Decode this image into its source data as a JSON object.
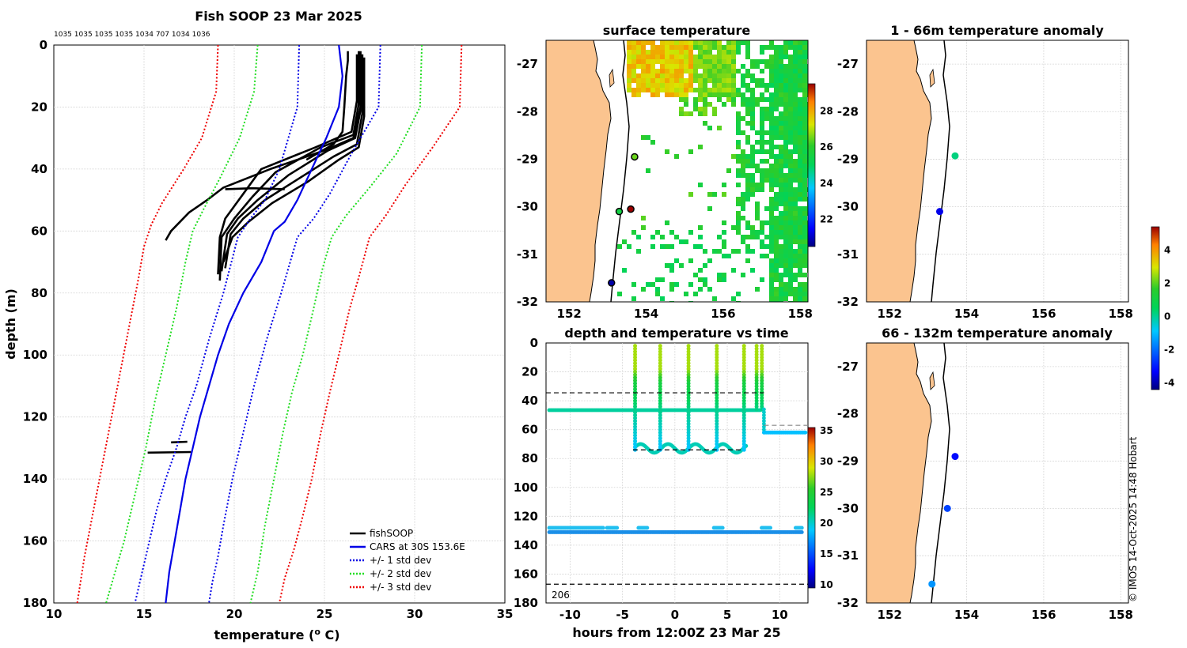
{
  "chart_data": [
    {
      "type": "line",
      "title": "Fish SOOP 23 Mar 2025",
      "subtitle": "1035 1035 1035 1035 1034 707 1034 1036",
      "xlabel": "temperature (",
      "xlabel_sup": "o",
      "xlabel_end": " C)",
      "ylabel": "depth (m)",
      "xlim": [
        10,
        35
      ],
      "ylim": [
        0,
        180
      ],
      "y_reversed": true,
      "xticks": [
        10,
        15,
        20,
        25,
        30,
        35
      ],
      "yticks": [
        0,
        20,
        40,
        60,
        80,
        100,
        120,
        140,
        160,
        180
      ],
      "grid": true,
      "legend_position": "bottom-right",
      "series": [
        {
          "name": "fishSOOP",
          "color": "#000000",
          "style": "solid",
          "profiles": [
            [
              [
                27,
                3
              ],
              [
                27,
                20
              ],
              [
                26.6,
                30
              ],
              [
                25,
                34
              ],
              [
                22,
                40
              ],
              [
                19.4,
                46
              ],
              [
                18.5,
                50
              ],
              [
                17.5,
                54
              ],
              [
                16.5,
                60
              ],
              [
                16.2,
                63
              ]
            ],
            [
              [
                26.8,
                3
              ],
              [
                26.8,
                18
              ],
              [
                26.5,
                28
              ],
              [
                24.5,
                33
              ],
              [
                21.5,
                40
              ],
              [
                20.5,
                48
              ],
              [
                19.5,
                56
              ],
              [
                19.2,
                62
              ],
              [
                19.1,
                74
              ]
            ],
            [
              [
                26.9,
                2
              ],
              [
                26.9,
                19
              ],
              [
                26.6,
                29
              ],
              [
                24.8,
                33
              ],
              [
                22.3,
                41
              ],
              [
                21,
                49
              ],
              [
                20,
                56
              ],
              [
                19.3,
                62
              ],
              [
                19.2,
                76
              ]
            ],
            [
              [
                27,
                2
              ],
              [
                27,
                21
              ],
              [
                26.7,
                30
              ],
              [
                25.2,
                34
              ],
              [
                23,
                42
              ],
              [
                21.3,
                50
              ],
              [
                20.2,
                56
              ],
              [
                19.6,
                61
              ],
              [
                19.3,
                73
              ]
            ],
            [
              [
                27.1,
                3
              ],
              [
                27.1,
                22
              ],
              [
                26.8,
                32
              ],
              [
                25.5,
                36
              ],
              [
                23.6,
                43
              ],
              [
                21.7,
                50
              ],
              [
                20.5,
                56
              ],
              [
                19.8,
                61
              ],
              [
                19.5,
                72
              ]
            ],
            [
              [
                27.2,
                4
              ],
              [
                27.2,
                23
              ],
              [
                26.9,
                33
              ],
              [
                25.8,
                37
              ],
              [
                24.1,
                44
              ],
              [
                22.1,
                51
              ],
              [
                20.8,
                57
              ],
              [
                19.9,
                62
              ],
              [
                19.4,
                70
              ]
            ],
            [
              [
                26.3,
                2
              ],
              [
                26.3,
                5
              ],
              [
                26.2,
                10
              ],
              [
                26.1,
                20
              ],
              [
                26,
                28
              ],
              [
                25.5,
                32
              ],
              [
                24,
                37
              ]
            ],
            [
              [
                19.5,
                46.5
              ],
              [
                21,
                46.2
              ],
              [
                22.8,
                46.5
              ]
            ],
            [
              [
                15.2,
                131.5
              ],
              [
                17.6,
                131.3
              ]
            ],
            [
              [
                16.5,
                128.2
              ],
              [
                17.4,
                128
              ]
            ]
          ]
        },
        {
          "name": "CARS at 30S 153.6E",
          "color": "#0000e6",
          "style": "solid",
          "points": [
            [
              25.8,
              0
            ],
            [
              26,
              10
            ],
            [
              25.8,
              20
            ],
            [
              25.1,
              30
            ],
            [
              24.3,
              40
            ],
            [
              23.5,
              50
            ],
            [
              22.8,
              57
            ],
            [
              22.2,
              60
            ],
            [
              21.5,
              70
            ],
            [
              20.5,
              80
            ],
            [
              19.7,
              90
            ],
            [
              19.1,
              100
            ],
            [
              18.6,
              110
            ],
            [
              18.1,
              120
            ],
            [
              17.7,
              130
            ],
            [
              17.3,
              140
            ],
            [
              17,
              150
            ],
            [
              16.7,
              160
            ],
            [
              16.4,
              170
            ],
            [
              16.2,
              180
            ]
          ]
        },
        {
          "name": "+/- 1 std dev",
          "color": "#0000e6",
          "style": "dotted",
          "low": [
            [
              23.6,
              0
            ],
            [
              23.5,
              20
            ],
            [
              22.5,
              40
            ],
            [
              21.7,
              50
            ],
            [
              20.9,
              56
            ],
            [
              20.2,
              62
            ],
            [
              19.4,
              80
            ],
            [
              18.6,
              95
            ],
            [
              17.9,
              110
            ],
            [
              17.3,
              120
            ],
            [
              16.8,
              130
            ],
            [
              16.2,
              140
            ],
            [
              15.7,
              150
            ],
            [
              15.3,
              160
            ],
            [
              14.9,
              170
            ],
            [
              14.5,
              180
            ]
          ],
          "high": [
            [
              28.1,
              0
            ],
            [
              28,
              20
            ],
            [
              26.5,
              35
            ],
            [
              25.3,
              48
            ],
            [
              24.4,
              56
            ],
            [
              23.5,
              62
            ],
            [
              23.1,
              70
            ],
            [
              22.6,
              80
            ],
            [
              21.8,
              95
            ],
            [
              21.1,
              110
            ],
            [
              20.7,
              120
            ],
            [
              20.3,
              130
            ],
            [
              19.9,
              140
            ],
            [
              19.4,
              155
            ],
            [
              19.1,
              165
            ],
            [
              18.8,
              173
            ],
            [
              18.6,
              180
            ]
          ]
        },
        {
          "name": "+/- 2 std dev",
          "color": "#22dd22",
          "style": "dotted",
          "low": [
            [
              21.3,
              0
            ],
            [
              21.1,
              15
            ],
            [
              20.3,
              30
            ],
            [
              19.2,
              43
            ],
            [
              18.3,
              53
            ],
            [
              17.7,
              60
            ],
            [
              17.3,
              70
            ],
            [
              16.8,
              85
            ],
            [
              16.2,
              100
            ],
            [
              15.6,
              115
            ],
            [
              15.1,
              130
            ],
            [
              14.5,
              145
            ],
            [
              13.9,
              160
            ],
            [
              13.3,
              172
            ],
            [
              12.9,
              180
            ]
          ],
          "high": [
            [
              30.4,
              0
            ],
            [
              30.3,
              20
            ],
            [
              29,
              35
            ],
            [
              27.5,
              46
            ],
            [
              26.2,
              55
            ],
            [
              25.4,
              62
            ],
            [
              24.9,
              72
            ],
            [
              24.4,
              85
            ],
            [
              23.8,
              100
            ],
            [
              23.2,
              112
            ],
            [
              22.7,
              125
            ],
            [
              22.2,
              140
            ],
            [
              21.7,
              155
            ],
            [
              21.3,
              170
            ],
            [
              20.9,
              180
            ]
          ]
        },
        {
          "name": "+/- 3 std dev",
          "color": "#ee0000",
          "style": "dotted",
          "low": [
            [
              19.1,
              0
            ],
            [
              19,
              15
            ],
            [
              18.2,
              30
            ],
            [
              17.2,
              40
            ],
            [
              16,
              51
            ],
            [
              15.4,
              58
            ],
            [
              15,
              65
            ],
            [
              14.7,
              75
            ],
            [
              14.2,
              90
            ],
            [
              13.7,
              105
            ],
            [
              13.2,
              120
            ],
            [
              12.7,
              135
            ],
            [
              12.2,
              150
            ],
            [
              11.7,
              165
            ],
            [
              11.3,
              180
            ]
          ],
          "high": [
            [
              32.6,
              0
            ],
            [
              32.5,
              20
            ],
            [
              31,
              33
            ],
            [
              29.5,
              45
            ],
            [
              28.4,
              55
            ],
            [
              27.5,
              62
            ],
            [
              26.9,
              75
            ],
            [
              26.4,
              85
            ],
            [
              25.8,
              100
            ],
            [
              25.3,
              112
            ],
            [
              24.8,
              125
            ],
            [
              24.3,
              140
            ],
            [
              23.8,
              152
            ],
            [
              23.3,
              163
            ],
            [
              22.8,
              172
            ],
            [
              22.5,
              180
            ]
          ]
        }
      ]
    },
    {
      "type": "heatmap",
      "title": "surface temperature",
      "xticks": [
        152,
        154,
        156,
        158
      ],
      "yticks": [
        -27,
        -28,
        -29,
        -30,
        -31,
        -32
      ],
      "xlim": [
        151.4,
        158.2
      ],
      "ylim": [
        -32,
        -26.5
      ],
      "colorbar_ticks": [
        22,
        24,
        26,
        28
      ],
      "clim": [
        20.5,
        29.5
      ],
      "markers": [
        {
          "lon": 153.7,
          "lat": -28.95,
          "value": 26.5
        },
        {
          "lon": 153.6,
          "lat": -30.05,
          "value": 30
        },
        {
          "lon": 153.3,
          "lat": -30.1,
          "value": 25.5
        },
        {
          "lon": 153.1,
          "lat": -31.6,
          "value": 20.8
        }
      ]
    },
    {
      "type": "scatter",
      "title": "1 - 66m temperature anomaly",
      "xticks": [
        152,
        154,
        156,
        158
      ],
      "yticks": [
        -27,
        -28,
        -29,
        -30,
        -31,
        -32
      ],
      "xlim": [
        151.4,
        158.2
      ],
      "ylim": [
        -32,
        -26.5
      ],
      "points": [
        {
          "lon": 153.7,
          "lat": -28.93,
          "anomaly": 0.2
        },
        {
          "lon": 153.3,
          "lat": -30.1,
          "anomaly": -3.5
        }
      ]
    },
    {
      "type": "scatter",
      "title": "66 - 132m temperature anomaly",
      "xticks": [
        152,
        154,
        156,
        158
      ],
      "yticks": [
        -27,
        -28,
        -29,
        -30,
        -31,
        -32
      ],
      "xlim": [
        151.4,
        158.2
      ],
      "ylim": [
        -32,
        -26.5
      ],
      "points": [
        {
          "lon": 153.7,
          "lat": -28.9,
          "anomaly": -3.2
        },
        {
          "lon": 153.5,
          "lat": -30.0,
          "anomaly": -2.5
        },
        {
          "lon": 153.1,
          "lat": -31.6,
          "anomaly": -1.5
        }
      ]
    },
    {
      "type": "line",
      "title": "depth and temperature vs time",
      "xlabel": "hours from 12:00Z 23 Mar 25",
      "xticks": [
        -10,
        -5,
        0,
        5,
        10
      ],
      "yticks": [
        0,
        20,
        40,
        60,
        80,
        100,
        120,
        140,
        160,
        180
      ],
      "xlim": [
        -12.3,
        12.7
      ],
      "ylim": [
        0,
        180
      ],
      "y_reversed": true,
      "annotation": "206",
      "colorbar_ticks": [
        10,
        15,
        20,
        25,
        30,
        35
      ],
      "clim": [
        9.5,
        35.5
      ],
      "dashed_lines": [
        {
          "depth": 34.5,
          "x0": -12.3,
          "x1": 8.5
        },
        {
          "depth": 74,
          "x0": -4,
          "x1": 6.5
        },
        {
          "depth": 57,
          "x0": 8.5,
          "x1": 12.7
        },
        {
          "depth": 167,
          "x0": -12.3,
          "x1": 12.7
        }
      ]
    }
  ],
  "anomaly_colorbar": {
    "ticks": [
      4,
      2,
      0,
      -2,
      -4
    ],
    "clim": [
      -4.4,
      5.4
    ]
  },
  "watermark": "© IMOS 14-Oct-2025 14:48 Hobart",
  "legend": [
    "fishSOOP",
    "CARS at 30S 153.6E",
    "+/- 1 std dev",
    "+/- 2 std dev",
    "+/- 3 std dev"
  ]
}
